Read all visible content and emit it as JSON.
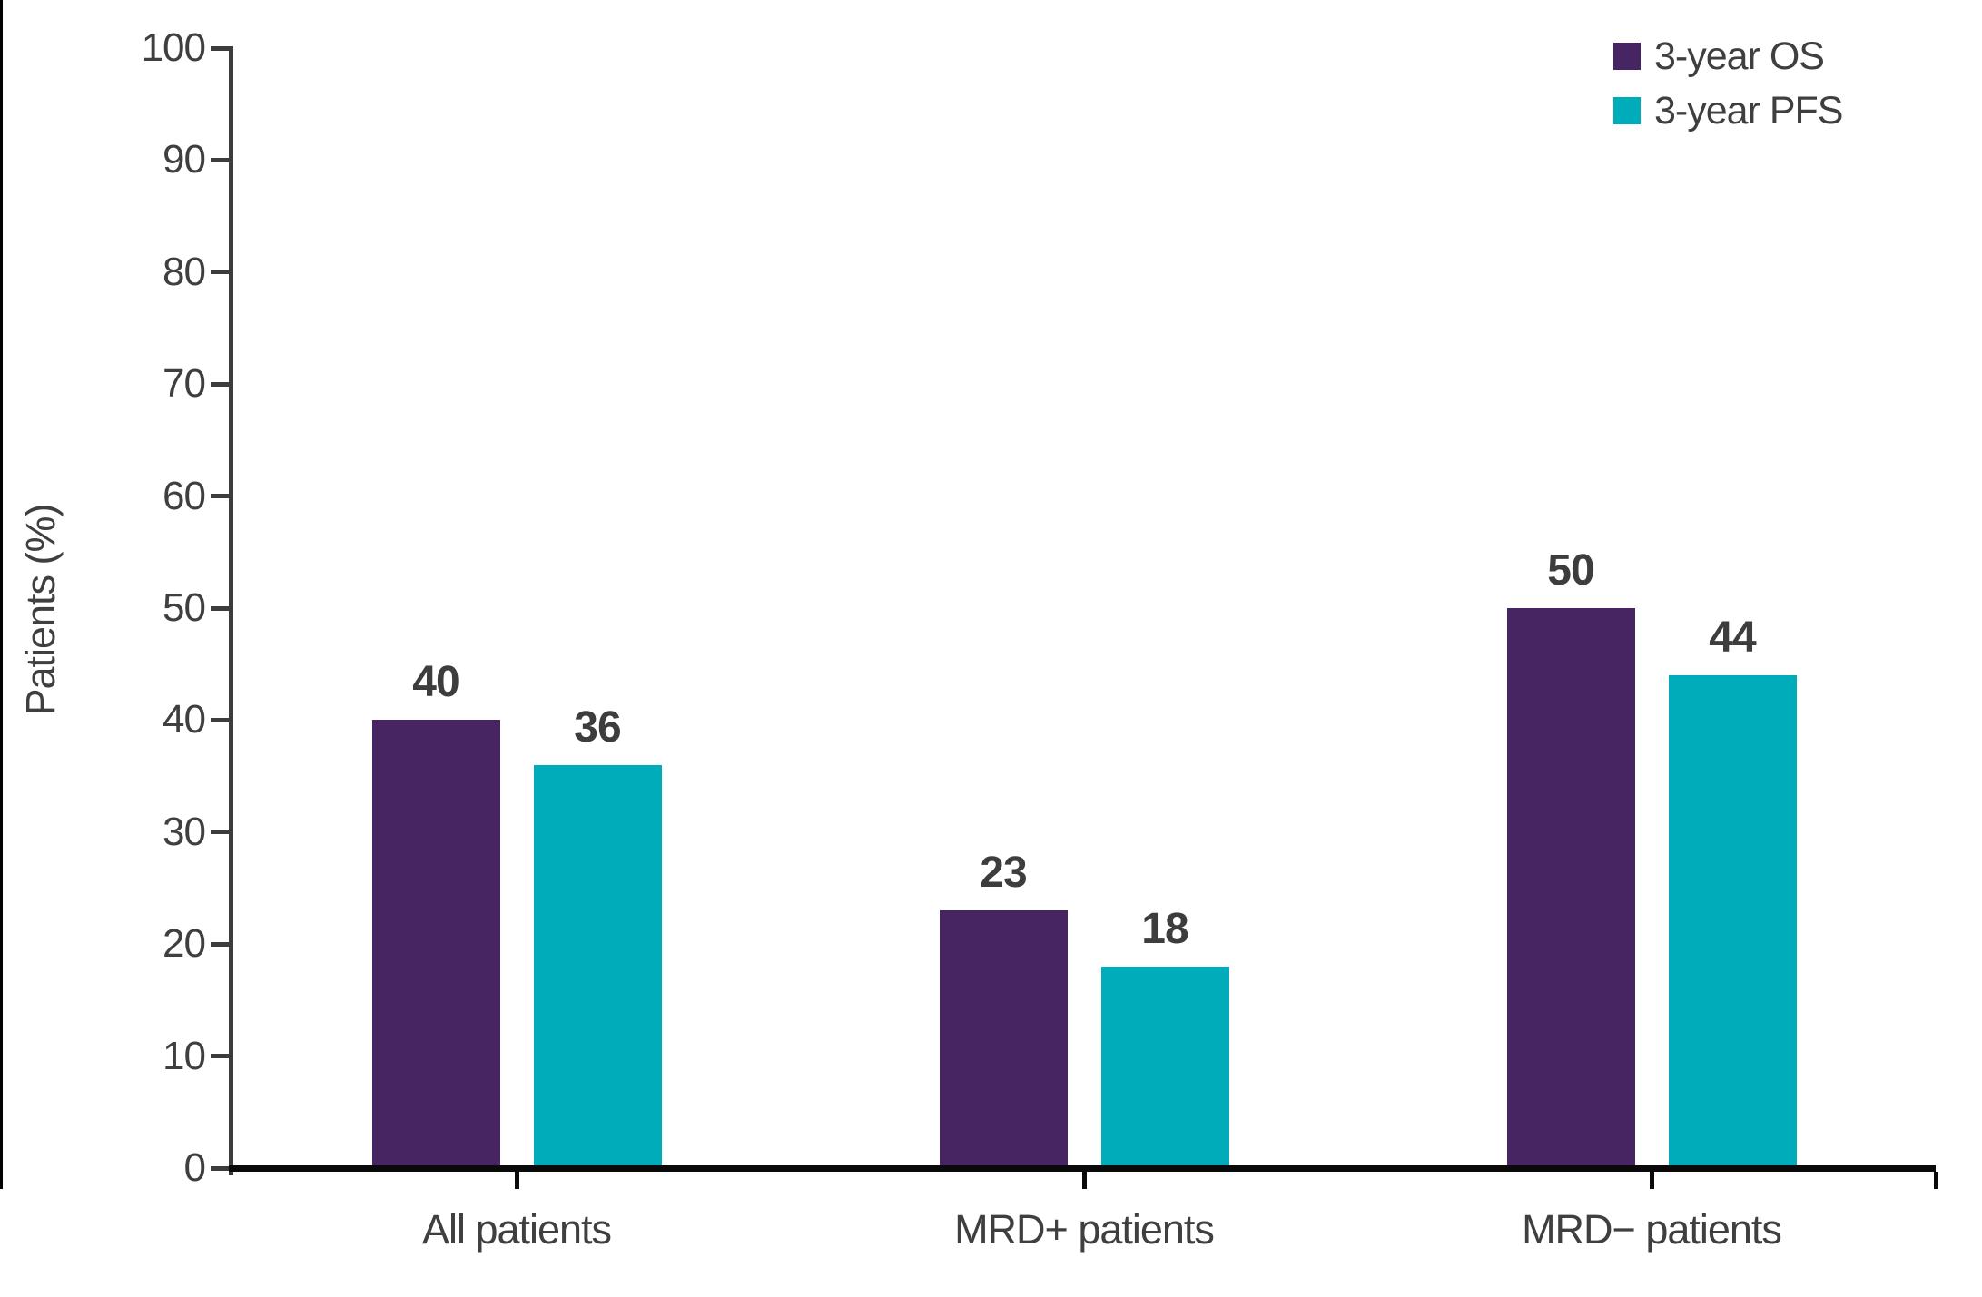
{
  "chart_data": {
    "type": "bar",
    "title": "",
    "ylabel": "Patients (%)",
    "xlabel": "",
    "ylim": [
      0,
      100
    ],
    "ytick_step": 10,
    "grid": false,
    "legend_position": "top-right",
    "bar_value_labels_shown": true,
    "categories": [
      "All patients",
      "MRD+ patients",
      "MRD− patients"
    ],
    "series": [
      {
        "name": "3-year OS",
        "color": "#472563",
        "values": [
          40,
          23,
          50
        ]
      },
      {
        "name": "3-year PFS",
        "color": "#00ACBA",
        "values": [
          36,
          18,
          44
        ]
      }
    ],
    "yticks": [
      0,
      10,
      20,
      30,
      40,
      50,
      60,
      70,
      80,
      90,
      100
    ]
  },
  "colors": {
    "series_os": "#472563",
    "series_pfs": "#00ACBA",
    "axis_text": "#3F3F3F",
    "x_axis_line": "#0A0A0A",
    "y_axis_line": "#3C3C3C",
    "value_label": "#3D3D3D",
    "background": "#FFFFFF",
    "left_border": "#000000"
  }
}
